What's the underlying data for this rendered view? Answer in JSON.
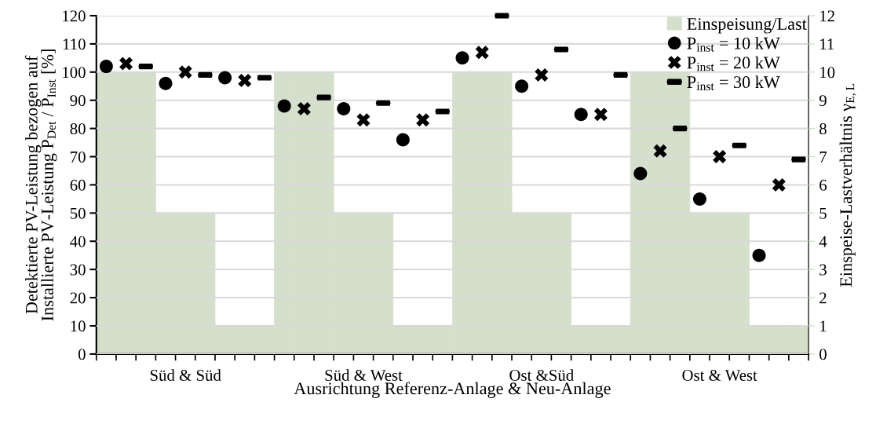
{
  "chart_data": {
    "type": "scatter",
    "xlabel": "Ausrichtung Referenz-Anlage & Neu-Anlage",
    "ylabel": "Detektierte PV-Leistung bezogen auf\nInstallierte PV-Leistung P$_{Det}$ / P$_{Inst}$ [%]",
    "y2label": "Einspeise-Lastverhältnis γ$_{E,L}$",
    "categories": [
      null,
      null,
      null,
      null,
      "Süd & Süd",
      null,
      null,
      null,
      null,
      null,
      null,
      null,
      null,
      "Süd & West",
      null,
      null,
      null,
      null,
      null,
      null,
      null,
      null,
      "Ost &Süd",
      null,
      null,
      null,
      null,
      null,
      null,
      null,
      null,
      "Ost & West",
      null,
      null,
      null,
      null
    ],
    "series": [
      {
        "name": "Einspeisung/Last",
        "type": "bar",
        "axis": "y2",
        "color": "#d5e0cc",
        "values": [
          10,
          10,
          10,
          5,
          5,
          5,
          1,
          1,
          1,
          10,
          10,
          10,
          5,
          5,
          5,
          1,
          1,
          1,
          10,
          10,
          10,
          5,
          5,
          5,
          1,
          1,
          1,
          10,
          10,
          10,
          5,
          5,
          5,
          1,
          1,
          1
        ]
      },
      {
        "name": "P$_{inst}$ = 10 kW",
        "marker": "circle",
        "color": "#000000",
        "values": [
          102,
          null,
          null,
          96,
          null,
          null,
          98,
          null,
          null,
          88,
          null,
          null,
          87,
          null,
          null,
          76,
          null,
          null,
          105,
          null,
          null,
          95,
          null,
          null,
          85,
          null,
          null,
          64,
          null,
          null,
          55,
          null,
          null,
          35,
          null,
          null
        ]
      },
      {
        "name": "P$_{inst}$ = 20 kW",
        "marker": "cross",
        "color": "#000000",
        "values": [
          null,
          103,
          null,
          null,
          100,
          null,
          null,
          97,
          null,
          null,
          87,
          null,
          null,
          83,
          null,
          null,
          83,
          null,
          null,
          107,
          null,
          null,
          99,
          null,
          null,
          85,
          null,
          null,
          72,
          null,
          null,
          70,
          null,
          null,
          60,
          null
        ]
      },
      {
        "name": "P$_{inst}$ = 30 kW",
        "color": "#000000",
        "values": [
          null,
          null,
          102,
          null,
          null,
          99,
          null,
          null,
          98,
          null,
          null,
          91,
          null,
          null,
          89,
          null,
          null,
          86,
          null,
          null,
          120,
          null,
          null,
          108,
          null,
          null,
          99,
          null,
          null,
          80,
          null,
          null,
          74,
          null,
          null,
          69
        ]
      }
    ],
    "ylim": [
      0,
      120
    ],
    "yticks": [
      0,
      10,
      20,
      30,
      40,
      50,
      60,
      70,
      80,
      90,
      100,
      110,
      120
    ],
    "y2lim": [
      0,
      12
    ],
    "y2ticks": [
      0,
      1,
      2,
      3,
      4,
      5,
      6,
      7,
      8,
      9,
      10,
      11,
      12
    ],
    "grid": "y",
    "legend": "top right"
  }
}
